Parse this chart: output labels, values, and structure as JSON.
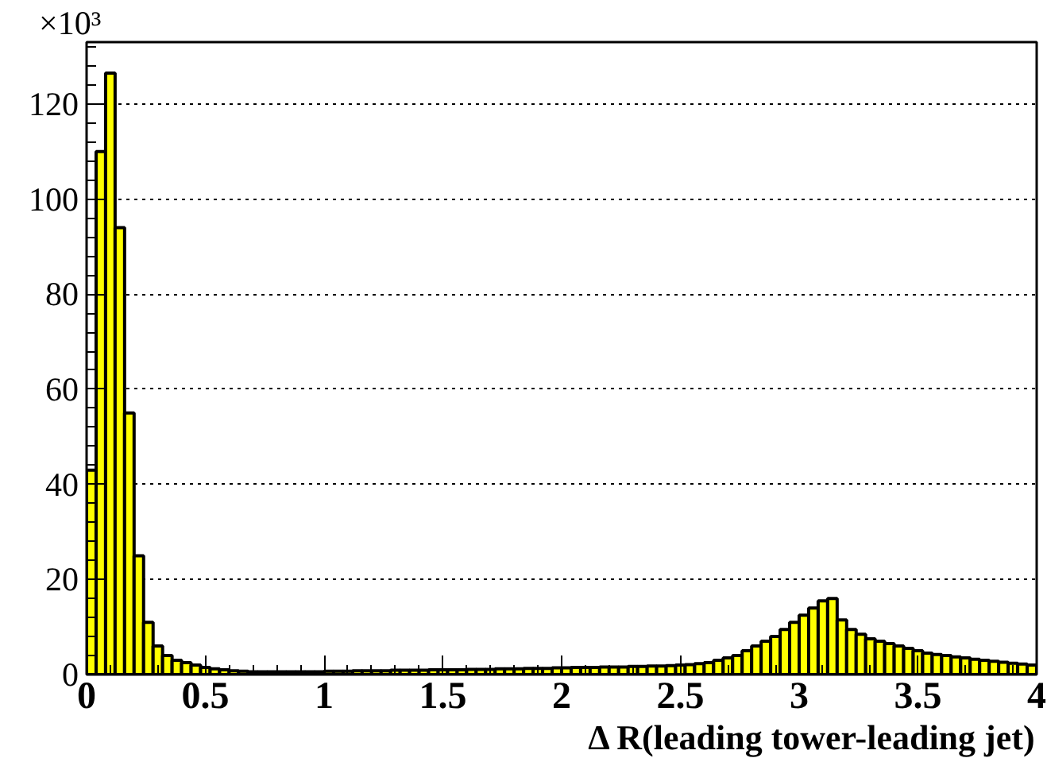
{
  "chart_data": {
    "type": "histogram",
    "xlabel": "Δ R(leading tower-leading jet)",
    "ylabel": "×10³",
    "bins": [
      0,
      0.04,
      0.08,
      0.12,
      0.16,
      0.2,
      0.24,
      0.28,
      0.32,
      0.36,
      0.4,
      0.44,
      0.48,
      0.52,
      0.56,
      0.6,
      0.64,
      0.68,
      0.72,
      0.76,
      0.8,
      0.84,
      0.88,
      0.92,
      0.96,
      1,
      1.04,
      1.08,
      1.12,
      1.16,
      1.2,
      1.24,
      1.28,
      1.32,
      1.36,
      1.4,
      1.44,
      1.48,
      1.52,
      1.56,
      1.6,
      1.64,
      1.68,
      1.72,
      1.76,
      1.8,
      1.84,
      1.88,
      1.92,
      1.96,
      2,
      2.04,
      2.08,
      2.12,
      2.16,
      2.2,
      2.24,
      2.28,
      2.32,
      2.36,
      2.4,
      2.44,
      2.48,
      2.52,
      2.56,
      2.6,
      2.64,
      2.68,
      2.72,
      2.76,
      2.8,
      2.84,
      2.88,
      2.92,
      2.96,
      3,
      3.04,
      3.08,
      3.12,
      3.16,
      3.2,
      3.24,
      3.28,
      3.32,
      3.36,
      3.4,
      3.44,
      3.48,
      3.52,
      3.56,
      3.6,
      3.64,
      3.68,
      3.72,
      3.76,
      3.8,
      3.84,
      3.88,
      3.92,
      3.96,
      4
    ],
    "values": [
      43,
      110,
      126.5,
      94,
      55,
      25,
      11,
      6,
      4,
      3,
      2.5,
      2,
      1.5,
      1.2,
      1,
      0.8,
      0.7,
      0.6,
      0.6,
      0.6,
      0.6,
      0.6,
      0.6,
      0.6,
      0.6,
      0.7,
      0.7,
      0.7,
      0.8,
      0.8,
      0.8,
      0.8,
      0.9,
      0.9,
      0.9,
      0.9,
      1,
      1,
      1,
      1,
      1.1,
      1.1,
      1.1,
      1.2,
      1.2,
      1.2,
      1.3,
      1.3,
      1.3,
      1.4,
      1.4,
      1.5,
      1.5,
      1.5,
      1.6,
      1.6,
      1.6,
      1.7,
      1.7,
      1.8,
      1.8,
      1.9,
      2,
      2.1,
      2.3,
      2.5,
      3,
      3.5,
      4,
      5,
      6,
      7,
      8,
      9.5,
      11,
      12.5,
      14,
      15.5,
      16,
      11.5,
      9.5,
      8.5,
      7.5,
      7,
      6.5,
      6,
      5.5,
      5,
      4.5,
      4.2,
      4,
      3.7,
      3.5,
      3.2,
      3,
      2.8,
      2.6,
      2.4,
      2.2,
      2
    ],
    "color": "#ffff00",
    "xlim": [
      0,
      4
    ],
    "xticks": [
      0,
      0.5,
      1,
      1.5,
      2,
      2.5,
      3,
      3.5,
      4
    ],
    "ylim": [
      0,
      133
    ],
    "yticks": [
      0,
      20,
      40,
      60,
      80,
      100,
      120
    ],
    "grid": true
  }
}
